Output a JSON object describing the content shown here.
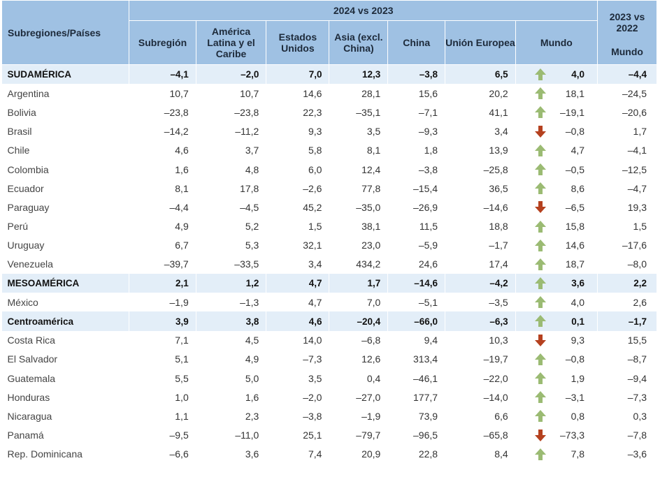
{
  "header": {
    "top_group": "2024 vs 2023",
    "prev_group_line1": "2023 vs",
    "prev_group_line2": "2022",
    "first_col": "Subregiones/Países",
    "columns": [
      "Subregión",
      "América Latina y el Caribe",
      "Estados Unidos",
      "Asia (excl. China)",
      "China",
      "Unión Europea",
      "Mundo"
    ],
    "prev_col": "Mundo"
  },
  "colors": {
    "header_bg": "#9fc1e3",
    "region_bg": "#e3eef8",
    "arrow_up": "#9bbb73",
    "arrow_down": "#b5411f"
  },
  "rows": [
    {
      "name": "SUDAMÉRICA",
      "type": "region",
      "values": [
        "–4,1",
        "–2,0",
        "7,0",
        "12,3",
        "–3,8",
        "6,5",
        "4,0"
      ],
      "arrow": "up",
      "prev": "–4,4"
    },
    {
      "name": "Argentina",
      "type": "country",
      "values": [
        "10,7",
        "10,7",
        "14,6",
        "28,1",
        "15,6",
        "20,2",
        "18,1"
      ],
      "arrow": "up",
      "prev": "–24,5"
    },
    {
      "name": "Bolivia",
      "type": "country",
      "values": [
        "–23,8",
        "–23,8",
        "22,3",
        "–35,1",
        "–7,1",
        "41,1",
        "–19,1"
      ],
      "arrow": "up",
      "prev": "–20,6"
    },
    {
      "name": "Brasil",
      "type": "country",
      "values": [
        "–14,2",
        "–11,2",
        "9,3",
        "3,5",
        "–9,3",
        "3,4",
        "–0,8"
      ],
      "arrow": "down",
      "prev": "1,7"
    },
    {
      "name": "Chile",
      "type": "country",
      "values": [
        "4,6",
        "3,7",
        "5,8",
        "8,1",
        "1,8",
        "13,9",
        "4,7"
      ],
      "arrow": "up",
      "prev": "–4,1"
    },
    {
      "name": "Colombia",
      "type": "country",
      "values": [
        "1,6",
        "4,8",
        "6,0",
        "12,4",
        "–3,8",
        "–25,8",
        "–0,5"
      ],
      "arrow": "up",
      "prev": "–12,5"
    },
    {
      "name": "Ecuador",
      "type": "country",
      "values": [
        "8,1",
        "17,8",
        "–2,6",
        "77,8",
        "–15,4",
        "36,5",
        "8,6"
      ],
      "arrow": "up",
      "prev": "–4,7"
    },
    {
      "name": "Paraguay",
      "type": "country",
      "values": [
        "–4,4",
        "–4,5",
        "45,2",
        "–35,0",
        "–26,9",
        "–14,6",
        "–6,5"
      ],
      "arrow": "down",
      "prev": "19,3"
    },
    {
      "name": "Perú",
      "type": "country",
      "values": [
        "4,9",
        "5,2",
        "1,5",
        "38,1",
        "11,5",
        "18,8",
        "15,8"
      ],
      "arrow": "up",
      "prev": "1,5"
    },
    {
      "name": "Uruguay",
      "type": "country",
      "values": [
        "6,7",
        "5,3",
        "32,1",
        "23,0",
        "–5,9",
        "–1,7",
        "14,6"
      ],
      "arrow": "up",
      "prev": "–17,6"
    },
    {
      "name": "Venezuela",
      "type": "country",
      "values": [
        "–39,7",
        "–33,5",
        "3,4",
        "434,2",
        "24,6",
        "17,4",
        "18,7"
      ],
      "arrow": "up",
      "prev": "–8,0"
    },
    {
      "name": "MESOAMÉRICA",
      "type": "region",
      "values": [
        "2,1",
        "1,2",
        "4,7",
        "1,7",
        "–14,6",
        "–4,2",
        "3,6"
      ],
      "arrow": "up",
      "prev": "2,2"
    },
    {
      "name": "México",
      "type": "country",
      "values": [
        "–1,9",
        "–1,3",
        "4,7",
        "7,0",
        "–5,1",
        "–3,5",
        "4,0"
      ],
      "arrow": "up",
      "prev": "2,6"
    },
    {
      "name": "Centroamérica",
      "type": "region",
      "values": [
        "3,9",
        "3,8",
        "4,6",
        "–20,4",
        "–66,0",
        "–6,3",
        "0,1"
      ],
      "arrow": "up",
      "prev": "–1,7"
    },
    {
      "name": "Costa Rica",
      "type": "country",
      "values": [
        "7,1",
        "4,5",
        "14,0",
        "–6,8",
        "9,4",
        "10,3",
        "9,3"
      ],
      "arrow": "down",
      "prev": "15,5"
    },
    {
      "name": "El Salvador",
      "type": "country",
      "values": [
        "5,1",
        "4,9",
        "–7,3",
        "12,6",
        "313,4",
        "–19,7",
        "–0,8"
      ],
      "arrow": "up",
      "prev": "–8,7"
    },
    {
      "name": "Guatemala",
      "type": "country",
      "values": [
        "5,5",
        "5,0",
        "3,5",
        "0,4",
        "–46,1",
        "–22,0",
        "1,9"
      ],
      "arrow": "up",
      "prev": "–9,4"
    },
    {
      "name": "Honduras",
      "type": "country",
      "values": [
        "1,0",
        "1,6",
        "–2,0",
        "–27,0",
        "177,7",
        "–14,0",
        "–3,1"
      ],
      "arrow": "up",
      "prev": "–7,3"
    },
    {
      "name": "Nicaragua",
      "type": "country",
      "values": [
        "1,1",
        "2,3",
        "–3,8",
        "–1,9",
        "73,9",
        "6,6",
        "0,8"
      ],
      "arrow": "up",
      "prev": "0,3"
    },
    {
      "name": "Panamá",
      "type": "country",
      "values": [
        "–9,5",
        "–11,0",
        "25,1",
        "–79,7",
        "–96,5",
        "–65,8",
        "–73,3"
      ],
      "arrow": "down",
      "prev": "–7,8"
    },
    {
      "name": "Rep. Dominicana",
      "type": "country",
      "values": [
        "–6,6",
        "3,6",
        "7,4",
        "20,9",
        "22,8",
        "8,4",
        "7,8"
      ],
      "arrow": "up",
      "prev": "–3,6"
    }
  ]
}
